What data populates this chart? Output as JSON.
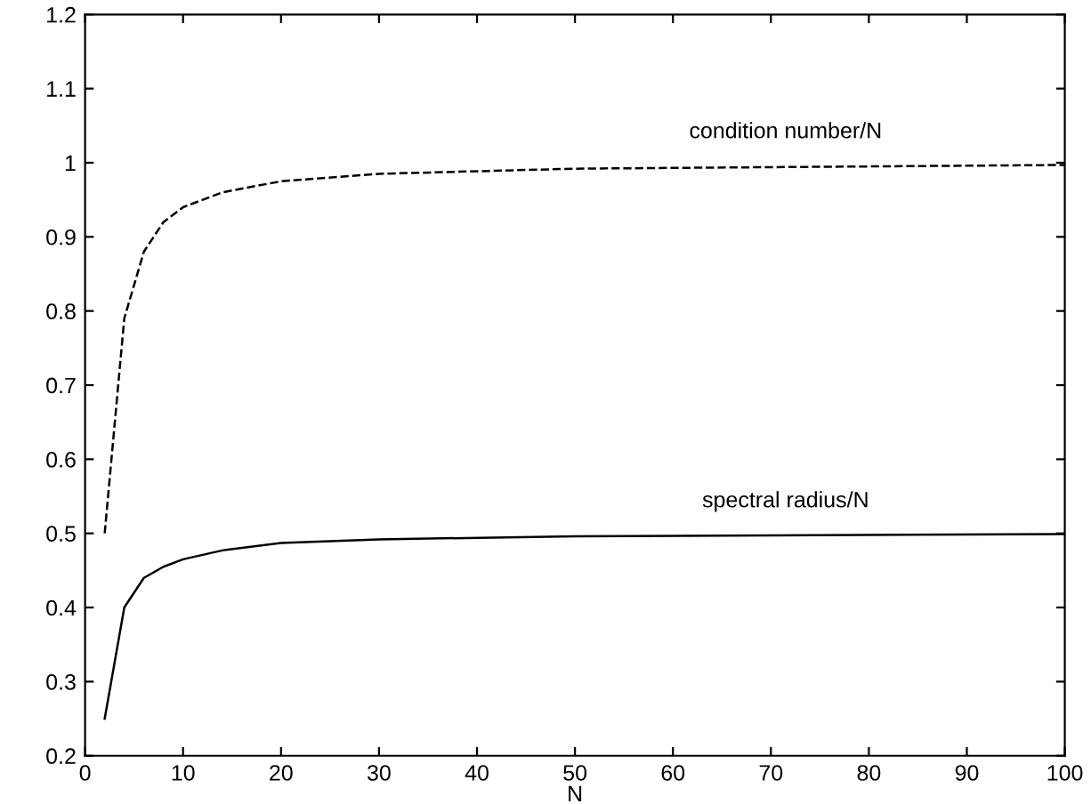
{
  "chart_data": {
    "type": "line",
    "xlabel": "N",
    "xlim": [
      0,
      100
    ],
    "ylim": [
      0.2,
      1.2
    ],
    "xticks": [
      0,
      10,
      20,
      30,
      40,
      50,
      60,
      70,
      80,
      90,
      100
    ],
    "yticks": [
      0.2,
      0.3,
      0.4,
      0.5,
      0.6,
      0.7,
      0.8,
      0.9,
      1,
      1.1,
      1.2
    ],
    "grid": false,
    "legend": false,
    "marker": "none",
    "series": [
      {
        "name": "condition number/N",
        "color": "#000000",
        "line_style": "dashed",
        "x": [
          2,
          4,
          6,
          8,
          10,
          14,
          20,
          30,
          50,
          100
        ],
        "values": [
          0.5,
          0.79,
          0.88,
          0.92,
          0.94,
          0.96,
          0.975,
          0.985,
          0.992,
          0.997
        ]
      },
      {
        "name": "spectral radius/N",
        "color": "#000000",
        "line_style": "solid",
        "x": [
          2,
          4,
          6,
          8,
          10,
          14,
          20,
          30,
          50,
          100
        ],
        "values": [
          0.25,
          0.4,
          0.44,
          0.455,
          0.465,
          0.477,
          0.487,
          0.492,
          0.496,
          0.499
        ]
      }
    ]
  }
}
